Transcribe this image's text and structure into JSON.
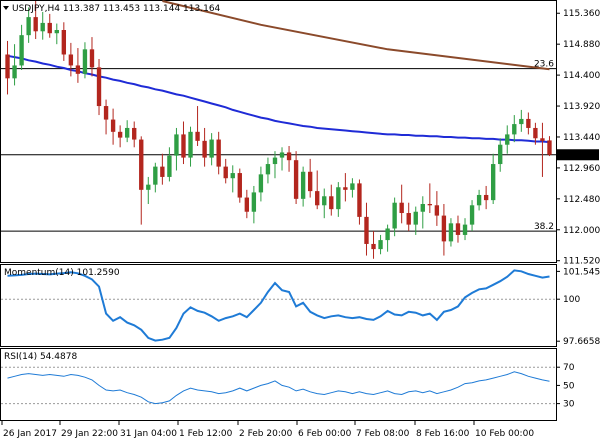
{
  "colors": {
    "bull": "#2f9e44",
    "bear": "#b3261e",
    "ma_fast": "#1f2bd6",
    "ma_slow": "#8b4a2b",
    "indicator": "#1f7bd6",
    "grid": "#dcdcdc",
    "axis": "#000000",
    "price_box_bg": "#000000",
    "price_box_fg": "#ffffff"
  },
  "chart_data": [
    {
      "type": "candlestick",
      "title": "USDJPY,H4  113.387 113.453 113.144 113.164",
      "yticks": [
        "115.360",
        "114.880",
        "114.400",
        "113.920",
        "113.440",
        "112.960",
        "112.480",
        "112.000",
        "111.520"
      ],
      "ylim": [
        111.5,
        115.55
      ],
      "current_price": "113.164",
      "current_price_value": 113.164,
      "fib_levels": [
        {
          "label": "23.6",
          "value": 114.5
        },
        {
          "label": "38.2",
          "value": 111.98
        }
      ],
      "x_tick_labels": [
        "26 Jan 2017",
        "29 Jan 22:00",
        "31 Jan 04:00",
        "1 Feb 12:00",
        "2 Feb 20:00",
        "6 Feb 00:00",
        "7 Feb 08:00",
        "8 Feb 16:00",
        "10 Feb 00:00"
      ],
      "candles": [
        {
          "o": 114.72,
          "h": 114.93,
          "l": 114.1,
          "c": 114.35
        },
        {
          "o": 114.35,
          "h": 114.88,
          "l": 114.24,
          "c": 114.55
        },
        {
          "o": 114.55,
          "h": 115.18,
          "l": 114.48,
          "c": 115.02
        },
        {
          "o": 115.02,
          "h": 115.45,
          "l": 114.9,
          "c": 115.3
        },
        {
          "o": 115.3,
          "h": 115.55,
          "l": 114.96,
          "c": 115.08
        },
        {
          "o": 115.08,
          "h": 115.38,
          "l": 114.95,
          "c": 115.21
        },
        {
          "o": 115.21,
          "h": 115.35,
          "l": 114.98,
          "c": 115.05
        },
        {
          "o": 115.05,
          "h": 115.2,
          "l": 114.88,
          "c": 115.1
        },
        {
          "o": 115.1,
          "h": 115.22,
          "l": 114.62,
          "c": 114.72
        },
        {
          "o": 114.72,
          "h": 114.9,
          "l": 114.38,
          "c": 114.55
        },
        {
          "o": 114.55,
          "h": 114.82,
          "l": 114.28,
          "c": 114.42
        },
        {
          "o": 114.42,
          "h": 114.91,
          "l": 114.35,
          "c": 114.8
        },
        {
          "o": 114.8,
          "h": 114.99,
          "l": 114.38,
          "c": 114.52
        },
        {
          "o": 114.52,
          "h": 114.65,
          "l": 113.78,
          "c": 113.92
        },
        {
          "o": 113.92,
          "h": 114.02,
          "l": 113.48,
          "c": 113.71
        },
        {
          "o": 113.71,
          "h": 113.88,
          "l": 113.32,
          "c": 113.52
        },
        {
          "o": 113.52,
          "h": 113.62,
          "l": 113.28,
          "c": 113.43
        },
        {
          "o": 113.43,
          "h": 113.7,
          "l": 113.36,
          "c": 113.58
        },
        {
          "o": 113.58,
          "h": 113.68,
          "l": 113.28,
          "c": 113.4
        },
        {
          "o": 113.4,
          "h": 113.45,
          "l": 112.08,
          "c": 112.62
        },
        {
          "o": 112.62,
          "h": 112.82,
          "l": 112.4,
          "c": 112.7
        },
        {
          "o": 112.7,
          "h": 113.04,
          "l": 112.58,
          "c": 112.98
        },
        {
          "o": 112.98,
          "h": 113.18,
          "l": 112.7,
          "c": 112.82
        },
        {
          "o": 112.82,
          "h": 113.28,
          "l": 112.75,
          "c": 113.15
        },
        {
          "o": 113.15,
          "h": 113.58,
          "l": 112.92,
          "c": 113.48
        },
        {
          "o": 113.48,
          "h": 113.68,
          "l": 113.02,
          "c": 113.12
        },
        {
          "o": 113.12,
          "h": 113.6,
          "l": 112.98,
          "c": 113.52
        },
        {
          "o": 113.52,
          "h": 113.92,
          "l": 113.3,
          "c": 113.38
        },
        {
          "o": 113.38,
          "h": 113.58,
          "l": 112.98,
          "c": 113.12
        },
        {
          "o": 113.12,
          "h": 113.5,
          "l": 113.0,
          "c": 113.4
        },
        {
          "o": 113.4,
          "h": 113.52,
          "l": 112.86,
          "c": 112.98
        },
        {
          "o": 112.98,
          "h": 113.1,
          "l": 112.72,
          "c": 112.8
        },
        {
          "o": 112.8,
          "h": 113.0,
          "l": 112.58,
          "c": 112.88
        },
        {
          "o": 112.88,
          "h": 112.95,
          "l": 112.42,
          "c": 112.5
        },
        {
          "o": 112.5,
          "h": 112.62,
          "l": 112.18,
          "c": 112.28
        },
        {
          "o": 112.28,
          "h": 112.68,
          "l": 112.1,
          "c": 112.58
        },
        {
          "o": 112.58,
          "h": 112.98,
          "l": 112.44,
          "c": 112.86
        },
        {
          "o": 112.86,
          "h": 113.12,
          "l": 112.72,
          "c": 113.02
        },
        {
          "o": 113.02,
          "h": 113.22,
          "l": 112.8,
          "c": 113.12
        },
        {
          "o": 113.12,
          "h": 113.28,
          "l": 112.92,
          "c": 113.2
        },
        {
          "o": 113.2,
          "h": 113.3,
          "l": 112.9,
          "c": 113.08
        },
        {
          "o": 113.08,
          "h": 113.22,
          "l": 112.4,
          "c": 112.48
        },
        {
          "o": 112.48,
          "h": 112.98,
          "l": 112.36,
          "c": 112.9
        },
        {
          "o": 112.9,
          "h": 113.1,
          "l": 112.5,
          "c": 112.6
        },
        {
          "o": 112.6,
          "h": 112.92,
          "l": 112.32,
          "c": 112.38
        },
        {
          "o": 112.38,
          "h": 112.64,
          "l": 112.18,
          "c": 112.52
        },
        {
          "o": 112.52,
          "h": 112.7,
          "l": 112.22,
          "c": 112.32
        },
        {
          "o": 112.32,
          "h": 112.74,
          "l": 112.2,
          "c": 112.66
        },
        {
          "o": 112.66,
          "h": 112.88,
          "l": 112.44,
          "c": 112.62
        },
        {
          "o": 112.62,
          "h": 112.8,
          "l": 112.5,
          "c": 112.72
        },
        {
          "o": 112.72,
          "h": 112.78,
          "l": 112.08,
          "c": 112.2
        },
        {
          "o": 112.2,
          "h": 112.42,
          "l": 111.6,
          "c": 111.78
        },
        {
          "o": 111.78,
          "h": 111.98,
          "l": 111.55,
          "c": 111.7
        },
        {
          "o": 111.7,
          "h": 111.92,
          "l": 111.62,
          "c": 111.84
        },
        {
          "o": 111.84,
          "h": 112.08,
          "l": 111.66,
          "c": 112.02
        },
        {
          "o": 112.02,
          "h": 112.5,
          "l": 111.9,
          "c": 112.42
        },
        {
          "o": 112.42,
          "h": 112.7,
          "l": 112.1,
          "c": 112.26
        },
        {
          "o": 112.26,
          "h": 112.42,
          "l": 111.98,
          "c": 112.08
        },
        {
          "o": 112.08,
          "h": 112.36,
          "l": 111.92,
          "c": 112.28
        },
        {
          "o": 112.28,
          "h": 112.52,
          "l": 112.02,
          "c": 112.4
        },
        {
          "o": 112.4,
          "h": 112.72,
          "l": 112.26,
          "c": 112.38
        },
        {
          "o": 112.38,
          "h": 112.6,
          "l": 112.06,
          "c": 112.22
        },
        {
          "o": 112.22,
          "h": 112.4,
          "l": 111.6,
          "c": 111.82
        },
        {
          "o": 111.82,
          "h": 112.18,
          "l": 111.74,
          "c": 112.1
        },
        {
          "o": 112.1,
          "h": 112.22,
          "l": 111.8,
          "c": 111.92
        },
        {
          "o": 111.92,
          "h": 112.18,
          "l": 111.84,
          "c": 112.08
        },
        {
          "o": 112.08,
          "h": 112.46,
          "l": 111.98,
          "c": 112.38
        },
        {
          "o": 112.38,
          "h": 112.62,
          "l": 112.3,
          "c": 112.54
        },
        {
          "o": 112.54,
          "h": 112.68,
          "l": 112.32,
          "c": 112.46
        },
        {
          "o": 112.46,
          "h": 113.18,
          "l": 112.4,
          "c": 113.02
        },
        {
          "o": 113.02,
          "h": 113.42,
          "l": 112.9,
          "c": 113.32
        },
        {
          "o": 113.32,
          "h": 113.62,
          "l": 113.18,
          "c": 113.48
        },
        {
          "o": 113.48,
          "h": 113.78,
          "l": 113.36,
          "c": 113.64
        },
        {
          "o": 113.64,
          "h": 113.86,
          "l": 113.52,
          "c": 113.72
        },
        {
          "o": 113.72,
          "h": 113.82,
          "l": 113.48,
          "c": 113.58
        },
        {
          "o": 113.58,
          "h": 113.66,
          "l": 113.32,
          "c": 113.42
        },
        {
          "o": 113.42,
          "h": 113.66,
          "l": 112.82,
          "c": 113.38
        },
        {
          "o": 113.387,
          "h": 113.453,
          "l": 113.144,
          "c": 113.164
        }
      ],
      "ma_fast": [
        114.7,
        114.68,
        114.66,
        114.63,
        114.61,
        114.58,
        114.56,
        114.53,
        114.51,
        114.48,
        114.46,
        114.43,
        114.41,
        114.38,
        114.36,
        114.33,
        114.31,
        114.28,
        114.26,
        114.23,
        114.21,
        114.18,
        114.16,
        114.13,
        114.1,
        114.08,
        114.05,
        114.02,
        113.99,
        113.96,
        113.93,
        113.9,
        113.86,
        113.83,
        113.8,
        113.77,
        113.74,
        113.72,
        113.69,
        113.67,
        113.65,
        113.63,
        113.61,
        113.6,
        113.58,
        113.57,
        113.56,
        113.55,
        113.54,
        113.53,
        113.52,
        113.51,
        113.5,
        113.49,
        113.48,
        113.48,
        113.47,
        113.47,
        113.46,
        113.46,
        113.45,
        113.45,
        113.44,
        113.44,
        113.43,
        113.43,
        113.42,
        113.42,
        113.41,
        113.41,
        113.4,
        113.4,
        113.39,
        113.39,
        113.38,
        113.37,
        113.37,
        113.36
      ],
      "ma_slow_x": [
        22,
        36,
        54,
        77
      ],
      "ma_slow": [
        115.55,
        115.18,
        114.8,
        114.49
      ]
    },
    {
      "type": "line",
      "title": "Momentum(14) 101.2590",
      "yticks": [
        "101.5451",
        "100",
        "97.6658"
      ],
      "ylim": [
        97.4,
        101.9
      ],
      "reference_line": 100,
      "values": [
        101.3,
        101.32,
        101.35,
        101.4,
        101.42,
        101.4,
        101.38,
        101.42,
        101.45,
        101.5,
        101.44,
        101.3,
        101.1,
        100.7,
        99.2,
        98.8,
        99.0,
        98.7,
        98.55,
        98.3,
        97.85,
        97.7,
        97.75,
        97.85,
        98.4,
        99.2,
        99.55,
        99.35,
        99.25,
        99.05,
        98.8,
        98.95,
        99.05,
        99.2,
        99.0,
        99.4,
        99.8,
        100.4,
        100.9,
        100.5,
        100.4,
        99.6,
        99.8,
        99.3,
        99.1,
        98.95,
        99.05,
        99.1,
        99.0,
        98.95,
        99.0,
        98.9,
        98.85,
        99.05,
        99.35,
        99.15,
        99.1,
        99.3,
        99.25,
        99.1,
        99.2,
        98.85,
        99.3,
        99.4,
        99.6,
        100.1,
        100.35,
        100.55,
        100.6,
        100.8,
        101.0,
        101.25,
        101.6,
        101.55,
        101.4,
        101.3,
        101.2,
        101.26
      ]
    },
    {
      "type": "line",
      "title": "RSI(14) 54.4878",
      "yticks": [
        "70",
        "50",
        "30"
      ],
      "ylim": [
        12,
        90
      ],
      "reference_lines": [
        70,
        30
      ],
      "values": [
        58,
        60,
        62,
        63,
        62,
        61,
        62,
        61,
        60,
        62,
        61,
        59,
        56,
        50,
        45,
        44,
        45,
        42,
        40,
        37,
        32,
        30,
        31,
        33,
        39,
        44,
        47,
        45,
        44,
        43,
        41,
        42,
        44,
        47,
        44,
        47,
        50,
        52,
        55,
        50,
        48,
        44,
        46,
        43,
        41,
        40,
        42,
        44,
        43,
        41,
        43,
        41,
        40,
        42,
        44,
        41,
        40,
        43,
        44,
        42,
        44,
        41,
        43,
        45,
        48,
        52,
        53,
        55,
        56,
        58,
        60,
        62,
        65,
        63,
        60,
        58,
        56,
        54.49
      ]
    }
  ]
}
